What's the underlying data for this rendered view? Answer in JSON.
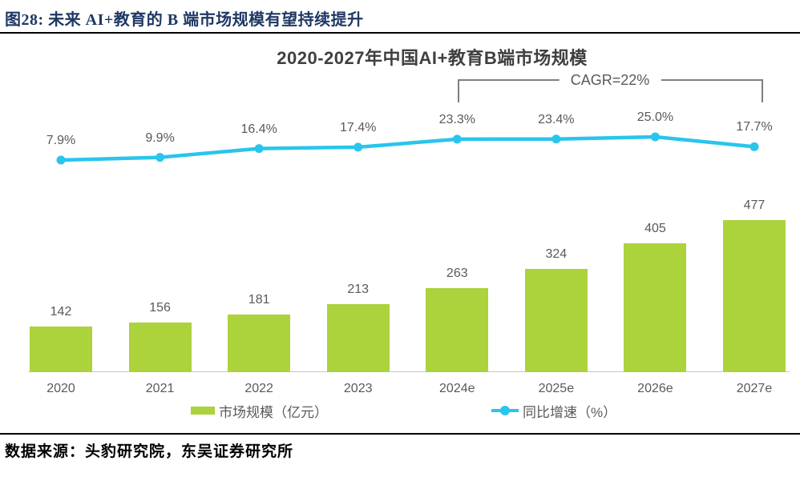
{
  "figure": {
    "header": "图28:  未来 AI+教育的 B 端市场规模有望持续提升",
    "source": "数据来源：头豹研究院，东吴证券研究所"
  },
  "colors": {
    "header_navy": "#1F3864",
    "bar_green": "#ACD23C",
    "line_cyan": "#29C5EC",
    "label_gray": "#595959",
    "bracket_gray": "#7F7F7F"
  },
  "chart_data": {
    "type": "bar",
    "subtype": "bar+line combo, dual axis, no visible y axes",
    "title": "2020-2027年中国AI+教育B端市场规模",
    "categories": [
      "2020",
      "2021",
      "2022",
      "2023",
      "2024e",
      "2025e",
      "2026e",
      "2027e"
    ],
    "series": [
      {
        "name": "市场规模（亿元）",
        "type": "bar",
        "color": "#ACD23C",
        "values": [
          142,
          156,
          181,
          213,
          263,
          324,
          405,
          477
        ],
        "labels": [
          "142",
          "156",
          "181",
          "213",
          "263",
          "324",
          "405",
          "477"
        ]
      },
      {
        "name": "同比增速（%）",
        "type": "line",
        "color": "#29C5EC",
        "values": [
          7.9,
          9.9,
          16.4,
          17.4,
          23.3,
          23.4,
          25.0,
          17.7
        ],
        "labels": [
          "7.9%",
          "9.9%",
          "16.4%",
          "17.4%",
          "23.3%",
          "23.4%",
          "25.0%",
          "17.7%"
        ]
      }
    ],
    "annotation": {
      "text": "CAGR=22%",
      "span": [
        "2024e",
        "2027e"
      ]
    },
    "legend_position": "bottom",
    "grid": false,
    "xlabel": "",
    "ylabel": ""
  }
}
